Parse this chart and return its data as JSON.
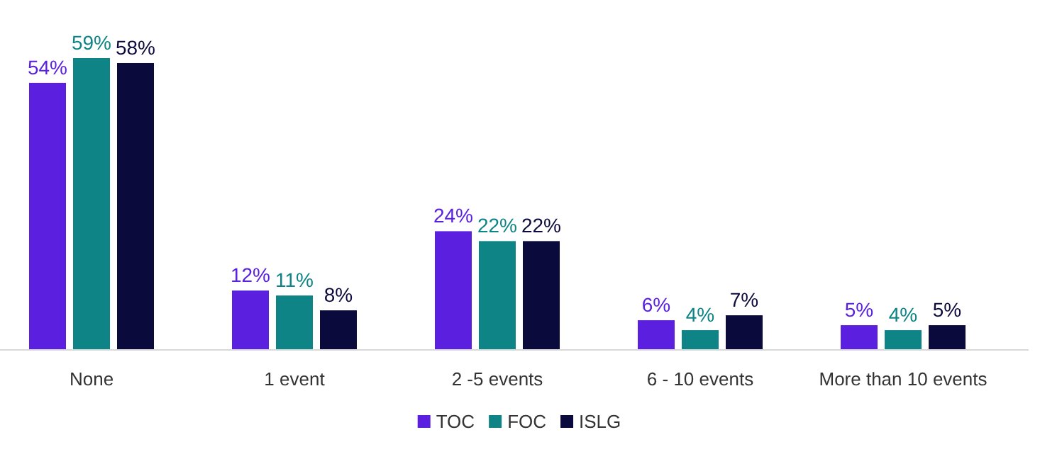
{
  "chart_data": {
    "type": "bar",
    "categories": [
      "None",
      "1 event",
      "2 -5 events",
      "6 - 10 events",
      "More than 10 events"
    ],
    "series": [
      {
        "name": "TOC",
        "color": "#5b1fe0",
        "values": [
          54,
          12,
          24,
          6,
          5
        ],
        "value_labels": [
          "54%",
          "12%",
          "24%",
          "6%",
          "5%"
        ]
      },
      {
        "name": "FOC",
        "color": "#0e8486",
        "values": [
          59,
          11,
          22,
          4,
          4
        ],
        "value_labels": [
          "59%",
          "11%",
          "22%",
          "4%",
          "4%"
        ]
      },
      {
        "name": "ISLG",
        "color": "#0b0a3c",
        "values": [
          58,
          8,
          22,
          7,
          5
        ],
        "value_labels": [
          "58%",
          "8%",
          "22%",
          "7%",
          "5%"
        ]
      }
    ],
    "legend": "bottom",
    "grid": false
  }
}
